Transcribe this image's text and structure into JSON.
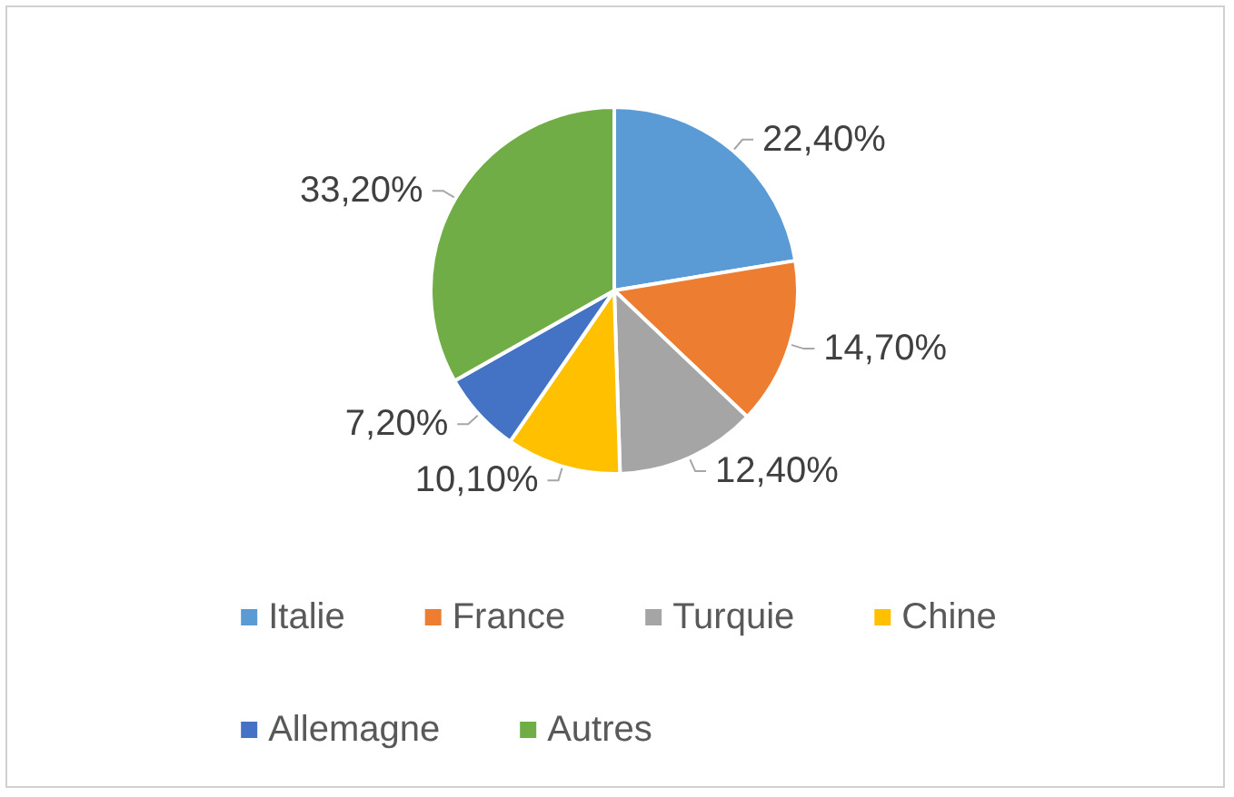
{
  "chart_data": {
    "type": "pie",
    "categories": [
      "Italie",
      "France",
      "Turquie",
      "Chine",
      "Allemagne",
      "Autres"
    ],
    "values": [
      22.4,
      14.7,
      12.4,
      10.1,
      7.2,
      33.2
    ],
    "colors": [
      "#5b9bd5",
      "#ed7d31",
      "#a5a5a5",
      "#ffc000",
      "#4472c4",
      "#70ad47"
    ],
    "value_labels": [
      "22,40%",
      "14,70%",
      "12,40%",
      "10,10%",
      "7,20%",
      "33,20%"
    ],
    "legend": "bottom"
  }
}
